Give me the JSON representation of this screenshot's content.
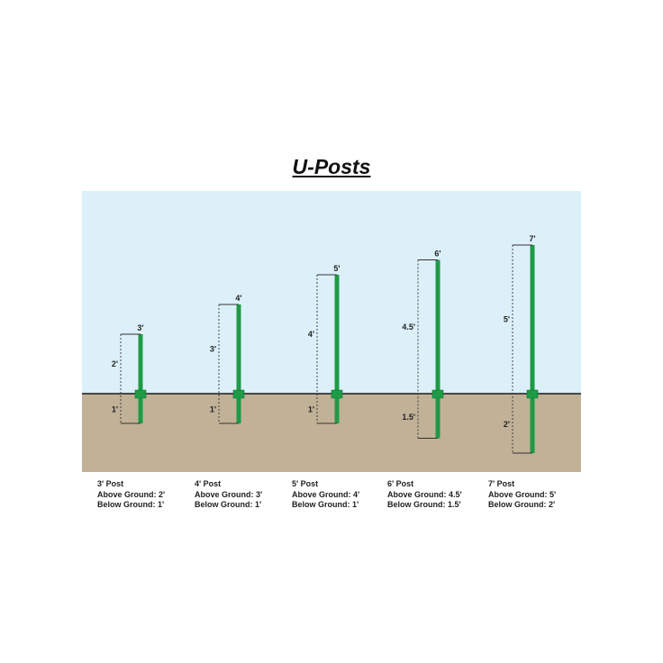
{
  "title": "U-Posts",
  "colors": {
    "sky": "#dcf0fa",
    "ground": "#c1b197",
    "post": "#1f9a46",
    "ground_line": "#1a1a1a"
  },
  "posts": [
    {
      "top_label": "3'",
      "above_label": "2'",
      "below_label": "1'",
      "above_ft": 2,
      "below_ft": 1,
      "caption": {
        "name": "3' Post",
        "above": "Above Ground: 2'",
        "below": "Below Ground: 1'"
      }
    },
    {
      "top_label": "4'",
      "above_label": "3'",
      "below_label": "1'",
      "above_ft": 3,
      "below_ft": 1,
      "caption": {
        "name": "4' Post",
        "above": "Above Ground: 3'",
        "below": "Below Ground: 1'"
      }
    },
    {
      "top_label": "5'",
      "above_label": "4'",
      "below_label": "1'",
      "above_ft": 4,
      "below_ft": 1,
      "caption": {
        "name": "5' Post",
        "above": "Above Ground: 4'",
        "below": "Below Ground: 1'"
      }
    },
    {
      "top_label": "6'",
      "above_label": "4.5'",
      "below_label": "1.5'",
      "above_ft": 4.5,
      "below_ft": 1.5,
      "caption": {
        "name": "6' Post",
        "above": "Above Ground: 4.5'",
        "below": "Below Ground: 1.5'"
      }
    },
    {
      "top_label": "7'",
      "above_label": "5'",
      "below_label": "2'",
      "above_ft": 5,
      "below_ft": 2,
      "caption": {
        "name": "7' Post",
        "above": "Above Ground: 5'",
        "below": "Below Ground: 2'"
      }
    }
  ]
}
